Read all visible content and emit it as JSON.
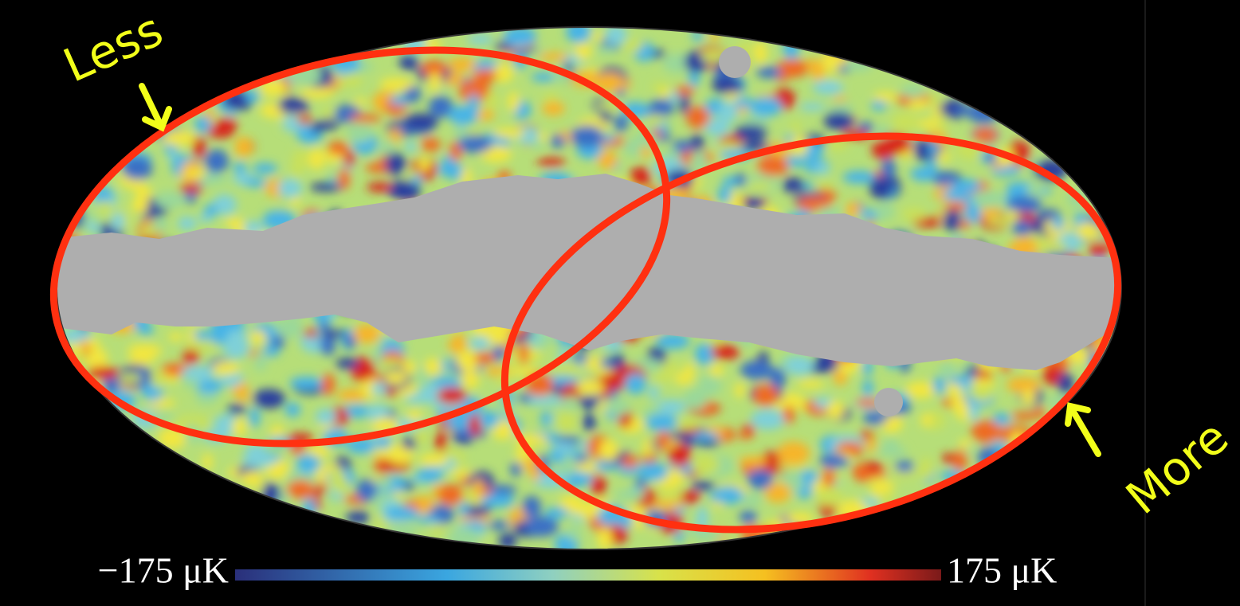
{
  "annotations": {
    "less": "Less",
    "more": "More"
  },
  "colorbar": {
    "min_label": "−175 μK",
    "max_label": "175 μK"
  }
}
